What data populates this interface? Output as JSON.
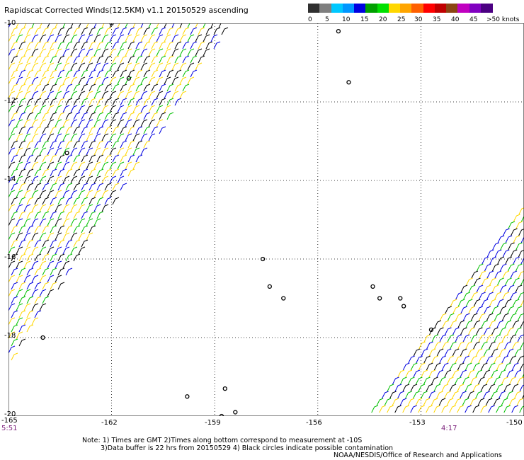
{
  "title": "Rapidscat Corrected Winds(12.5KM) v1.1 20150529 ascending",
  "colorbar": {
    "labels": [
      "0",
      "5",
      "10",
      "15",
      "20",
      "25",
      "30",
      "35",
      "40",
      "45",
      ">50 knots"
    ],
    "colors": [
      "#303030",
      "#7f7f7f",
      "#00c8ff",
      "#0096ff",
      "#0000e0",
      "#00a000",
      "#00e000",
      "#ffd700",
      "#ffa500",
      "#ff6000",
      "#ff0000",
      "#c00000",
      "#8b4513",
      "#c000c0",
      "#8000c0",
      "#4b0082"
    ]
  },
  "map": {
    "lon_range": [
      -165,
      -150
    ],
    "lat_range": [
      -20,
      -10
    ],
    "lon_ticks": [
      "-165",
      "-162",
      "-159",
      "-156",
      "-153",
      "-150"
    ],
    "lat_ticks": [
      "-10",
      "-12",
      "-14",
      "-16",
      "-18",
      "-20"
    ],
    "swath_west": {
      "color_mix": [
        "#0000e0",
        "#00c000",
        "#000000",
        "#ffd700"
      ]
    },
    "swath_east": {
      "color_mix": [
        "#0000e0",
        "#00c000",
        "#000000",
        "#ffd700"
      ]
    },
    "contamination_note_color": "#000000"
  },
  "times": {
    "left": "5:51",
    "right": "4:17"
  },
  "notes": {
    "line1": "Note: 1) Times are GMT 2)Times along bottom correspond to measurement at -10S",
    "line2": "3)Data buffer is 22 hrs from 20150529 4) Black circles indicate possible contamination"
  },
  "credit": "NOAA/NESDIS/Office of Research and Applications"
}
